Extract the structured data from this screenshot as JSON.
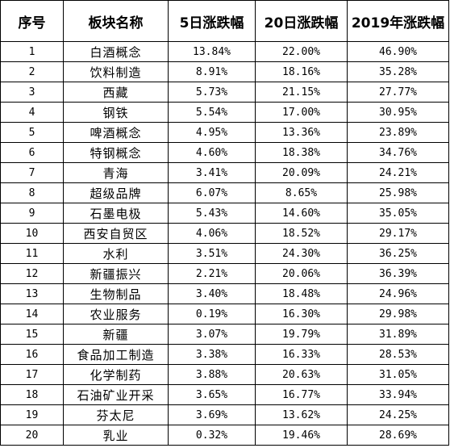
{
  "table": {
    "headers": [
      "序号",
      "板块名称",
      "5日涨跌幅",
      "20日涨跌幅",
      "2019年涨跌幅"
    ],
    "rows": [
      [
        "1",
        "白酒概念",
        "13.84%",
        "22.00%",
        "46.90%"
      ],
      [
        "2",
        "饮料制造",
        "8.91%",
        "18.16%",
        "35.28%"
      ],
      [
        "3",
        "西藏",
        "5.73%",
        "21.15%",
        "27.77%"
      ],
      [
        "4",
        "钢铁",
        "5.54%",
        "17.00%",
        "30.95%"
      ],
      [
        "5",
        "啤酒概念",
        "4.95%",
        "13.36%",
        "23.89%"
      ],
      [
        "6",
        "特钢概念",
        "4.60%",
        "18.38%",
        "34.76%"
      ],
      [
        "7",
        "青海",
        "3.41%",
        "20.09%",
        "24.21%"
      ],
      [
        "8",
        "超级品牌",
        "6.07%",
        "8.65%",
        "25.98%"
      ],
      [
        "9",
        "石墨电极",
        "5.43%",
        "14.60%",
        "35.05%"
      ],
      [
        "10",
        "西安自贸区",
        "4.06%",
        "18.52%",
        "29.17%"
      ],
      [
        "11",
        "水利",
        "3.51%",
        "24.30%",
        "36.25%"
      ],
      [
        "12",
        "新疆振兴",
        "2.21%",
        "20.06%",
        "36.39%"
      ],
      [
        "13",
        "生物制品",
        "3.40%",
        "18.48%",
        "24.96%"
      ],
      [
        "14",
        "农业服务",
        "0.19%",
        "16.30%",
        "29.98%"
      ],
      [
        "15",
        "新疆",
        "3.07%",
        "19.79%",
        "31.89%"
      ],
      [
        "16",
        "食品加工制造",
        "3.38%",
        "16.33%",
        "28.53%"
      ],
      [
        "17",
        "化学制药",
        "3.88%",
        "20.63%",
        "31.05%"
      ],
      [
        "18",
        "石油矿业开采",
        "3.65%",
        "16.77%",
        "33.94%"
      ],
      [
        "19",
        "芬太尼",
        "3.69%",
        "13.62%",
        "24.25%"
      ],
      [
        "20",
        "乳业",
        "0.32%",
        "19.46%",
        "28.69%"
      ]
    ]
  }
}
